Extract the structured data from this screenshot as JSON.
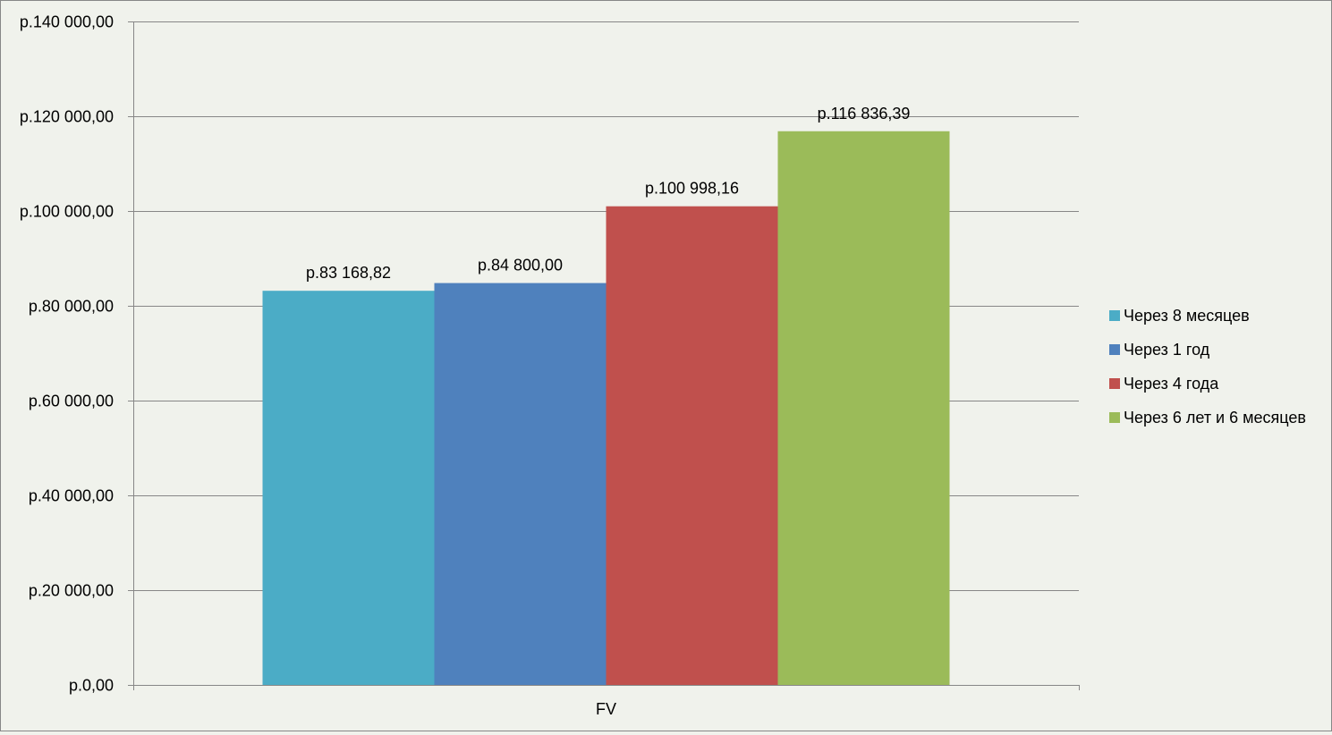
{
  "chart_data": {
    "type": "bar",
    "categories": [
      "FV"
    ],
    "series": [
      {
        "name": "Через 8 месяцев",
        "values": [
          83168.82
        ],
        "label": "р.83 168,82",
        "color": "#4bacc6"
      },
      {
        "name": "Через 1 год",
        "values": [
          84800.0
        ],
        "label": "р.84 800,00",
        "color": "#4f81bd"
      },
      {
        "name": "Через 4 года",
        "values": [
          100998.16
        ],
        "label": "р.100 998,16",
        "color": "#c0504d"
      },
      {
        "name": "Через 6 лет и 6 месяцев",
        "values": [
          116836.39
        ],
        "label": "р.116 836,39",
        "color": "#9bbb59"
      }
    ],
    "ylim": [
      0,
      140000
    ],
    "yticks": [
      0,
      20000,
      40000,
      60000,
      80000,
      100000,
      120000,
      140000
    ],
    "ytick_labels": [
      "р.0,00",
      "р.20 000,00",
      "р.40 000,00",
      "р.60 000,00",
      "р.80 000,00",
      "р.100 000,00",
      "р.120 000,00",
      "р.140 000,00"
    ],
    "grid": true,
    "legend_position": "right",
    "title": "",
    "xlabel": "",
    "ylabel": ""
  }
}
